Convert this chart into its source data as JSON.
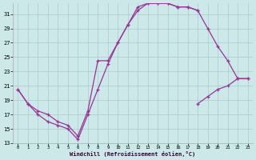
{
  "bg_color": "#cce8e8",
  "grid_color": "#aacccc",
  "line_color": "#993399",
  "xlabel": "Windchill (Refroidissement éolien,°C)",
  "xlim": [
    -0.5,
    23.5
  ],
  "ylim": [
    13,
    32.5
  ],
  "xticks": [
    0,
    1,
    2,
    3,
    4,
    5,
    6,
    7,
    8,
    9,
    10,
    11,
    12,
    13,
    14,
    15,
    16,
    17,
    18,
    19,
    20,
    21,
    22,
    23
  ],
  "yticks": [
    13,
    15,
    17,
    19,
    21,
    23,
    25,
    27,
    29,
    31
  ],
  "series": [
    {
      "x": [
        0,
        1,
        2,
        3,
        4,
        5,
        6,
        7,
        8,
        9,
        10,
        11,
        12,
        13,
        14,
        15,
        16,
        17,
        18
      ],
      "y": [
        20.5,
        18.5,
        17.0,
        16.0,
        15.5,
        15.0,
        13.5,
        17.0,
        20.5,
        24.0,
        27.0,
        29.5,
        32.0,
        32.5,
        32.5,
        32.5,
        32.0,
        32.0,
        31.5
      ]
    },
    {
      "x": [
        0,
        1,
        2,
        3,
        4,
        5,
        6,
        7,
        8,
        9,
        10,
        11,
        12,
        13,
        14,
        15,
        16,
        17,
        18,
        19,
        20,
        21,
        22,
        23
      ],
      "y": [
        20.5,
        18.5,
        17.5,
        17.0,
        16.0,
        15.5,
        14.0,
        17.5,
        24.5,
        24.5,
        27.0,
        29.5,
        31.5,
        32.5,
        32.5,
        32.5,
        32.0,
        32.0,
        31.5,
        29.0,
        26.5,
        24.5,
        22.0,
        22.0
      ]
    },
    {
      "x": [
        18,
        19,
        20,
        21,
        22,
        23
      ],
      "y": [
        18.5,
        19.5,
        20.5,
        21.0,
        22.0,
        22.0
      ]
    }
  ]
}
